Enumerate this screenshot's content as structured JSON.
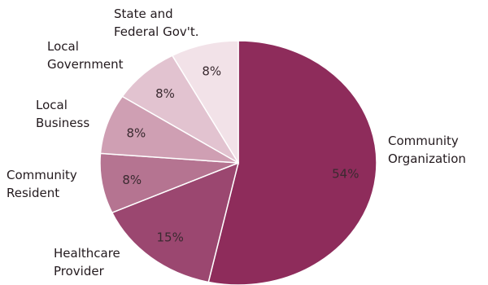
{
  "chart_data": {
    "type": "pie",
    "start_angle_deg": 0,
    "direction": "clockwise",
    "slices": [
      {
        "category": [
          "Community",
          "Organization"
        ],
        "value": 54,
        "label": "54%",
        "color": "#8e2c5b"
      },
      {
        "category": [
          "Healthcare",
          "Provider"
        ],
        "value": 15,
        "label": "15%",
        "color": "#9b4770"
      },
      {
        "category": [
          "Community",
          "Resident"
        ],
        "value": 8,
        "label": "8%",
        "color": "#b57491"
      },
      {
        "category": [
          "Local",
          "Business"
        ],
        "value": 8,
        "label": "8%",
        "color": "#cf9fb3"
      },
      {
        "category": [
          "Local",
          "Government"
        ],
        "value": 8,
        "label": "8%",
        "color": "#e2c3d0"
      },
      {
        "category": [
          "State and",
          "Federal Gov't."
        ],
        "value": 8,
        "label": "8%",
        "color": "#f2e2e8"
      }
    ]
  }
}
